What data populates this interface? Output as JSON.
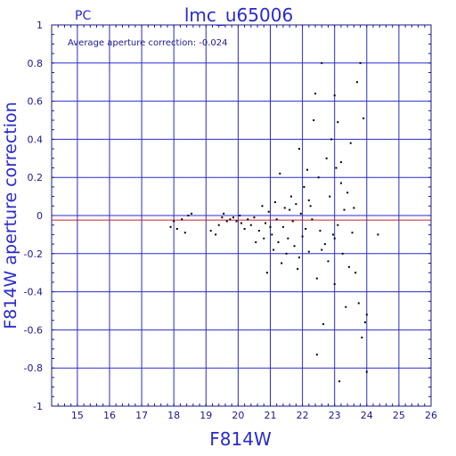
{
  "chart_data": {
    "type": "scatter",
    "title": "lmc_u65006",
    "subtitle": "PC",
    "xlabel": "F814W",
    "ylabel": "F814W aperture correction",
    "annotation": "Average aperture correction:  -0.024",
    "xlim": [
      14.2,
      26
    ],
    "ylim": [
      -1,
      1
    ],
    "xticks": [
      "15",
      "16",
      "17",
      "18",
      "19",
      "20",
      "21",
      "22",
      "23",
      "24",
      "25",
      "26"
    ],
    "yticks": [
      "-1",
      "-0.8",
      "-0.6",
      "-0.4",
      "-0.2",
      "0",
      "0.2",
      "0.4",
      "0.6",
      "0.8",
      "1"
    ],
    "grid": true,
    "reference_lines": [
      {
        "y": 0,
        "color": "#2a2acc"
      },
      {
        "y": -0.024,
        "color": "#cc2222"
      }
    ],
    "series": [
      {
        "points": [
          [
            17.9,
            -0.06
          ],
          [
            18.0,
            -0.03
          ],
          [
            18.1,
            -0.07
          ],
          [
            18.25,
            -0.02
          ],
          [
            18.35,
            -0.09
          ],
          [
            18.45,
            0.0
          ],
          [
            18.55,
            0.01
          ],
          [
            19.15,
            -0.08
          ],
          [
            19.3,
            -0.1
          ],
          [
            19.4,
            -0.05
          ],
          [
            19.5,
            -0.01
          ],
          [
            19.55,
            0.01
          ],
          [
            19.65,
            -0.03
          ],
          [
            19.75,
            -0.02
          ],
          [
            19.85,
            -0.01
          ],
          [
            19.95,
            -0.03
          ],
          [
            20.05,
            0.0
          ],
          [
            20.1,
            -0.04
          ],
          [
            20.2,
            -0.07
          ],
          [
            20.3,
            -0.02
          ],
          [
            20.4,
            -0.05
          ],
          [
            20.5,
            -0.01
          ],
          [
            20.55,
            -0.14
          ],
          [
            20.65,
            -0.08
          ],
          [
            20.75,
            0.05
          ],
          [
            20.8,
            -0.12
          ],
          [
            20.85,
            -0.04
          ],
          [
            20.9,
            -0.3
          ],
          [
            20.95,
            0.02
          ],
          [
            21.0,
            -0.06
          ],
          [
            21.05,
            -0.1
          ],
          [
            21.1,
            -0.18
          ],
          [
            21.15,
            0.07
          ],
          [
            21.2,
            -0.02
          ],
          [
            21.25,
            -0.14
          ],
          [
            21.3,
            0.22
          ],
          [
            21.35,
            -0.25
          ],
          [
            21.4,
            -0.06
          ],
          [
            21.45,
            0.04
          ],
          [
            21.5,
            -0.2
          ],
          [
            21.55,
            -0.12
          ],
          [
            21.6,
            0.03
          ],
          [
            21.65,
            0.1
          ],
          [
            21.7,
            -0.03
          ],
          [
            21.75,
            -0.16
          ],
          [
            21.8,
            0.06
          ],
          [
            21.85,
            -0.28
          ],
          [
            21.9,
            0.35
          ],
          [
            21.95,
            0.01
          ],
          [
            22.0,
            -0.11
          ],
          [
            22.05,
            0.15
          ],
          [
            22.1,
            -0.07
          ],
          [
            22.15,
            0.24
          ],
          [
            22.2,
            -0.19
          ],
          [
            22.25,
            0.05
          ],
          [
            22.3,
            -0.02
          ],
          [
            22.35,
            0.5
          ],
          [
            22.4,
            0.64
          ],
          [
            22.45,
            -0.33
          ],
          [
            22.5,
            0.2
          ],
          [
            22.55,
            -0.08
          ],
          [
            22.6,
            0.8
          ],
          [
            22.65,
            -0.57
          ],
          [
            22.7,
            -0.15
          ],
          [
            22.75,
            0.3
          ],
          [
            22.8,
            -0.24
          ],
          [
            22.85,
            0.1
          ],
          [
            22.9,
            0.4
          ],
          [
            22.95,
            -0.1
          ],
          [
            23.0,
            0.63
          ],
          [
            23.0,
            -0.36
          ],
          [
            23.05,
            0.25
          ],
          [
            23.1,
            -0.05
          ],
          [
            23.1,
            0.49
          ],
          [
            23.15,
            -0.87
          ],
          [
            23.2,
            0.17
          ],
          [
            23.25,
            -0.2
          ],
          [
            23.3,
            0.03
          ],
          [
            23.35,
            -0.48
          ],
          [
            23.4,
            0.12
          ],
          [
            23.45,
            -0.27
          ],
          [
            23.5,
            0.38
          ],
          [
            23.55,
            -0.09
          ],
          [
            23.6,
            0.04
          ],
          [
            23.65,
            -0.3
          ],
          [
            23.7,
            0.7
          ],
          [
            23.75,
            -0.46
          ],
          [
            23.8,
            0.8
          ],
          [
            23.85,
            -0.64
          ],
          [
            23.9,
            0.51
          ],
          [
            23.95,
            -0.56
          ],
          [
            24.0,
            -0.52
          ],
          [
            24.0,
            -0.82
          ],
          [
            24.35,
            -0.1
          ],
          [
            22.45,
            -0.73
          ],
          [
            23.0,
            -0.12
          ],
          [
            23.2,
            0.28
          ],
          [
            21.9,
            -0.22
          ],
          [
            22.2,
            0.08
          ],
          [
            22.6,
            -0.18
          ]
        ]
      }
    ]
  }
}
